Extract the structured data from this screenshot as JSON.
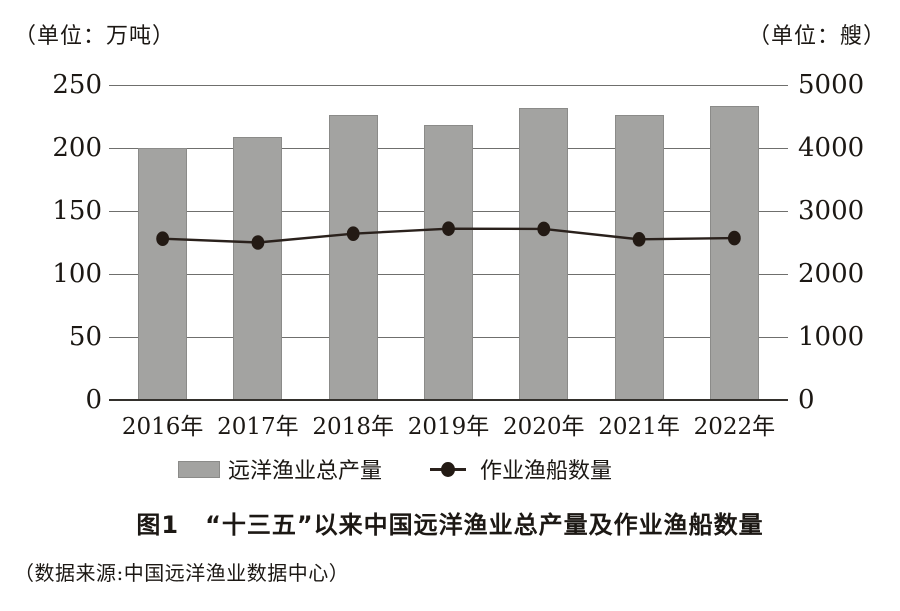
{
  "chart_data": {
    "type": "bar",
    "categories": [
      "2016年",
      "2017年",
      "2018年",
      "2019年",
      "2020年",
      "2021年",
      "2022年"
    ],
    "series": [
      {
        "name": "远洋渔业总产量",
        "kind": "bar",
        "axis": "left",
        "values": [
          200,
          209,
          226,
          218,
          232,
          226,
          233
        ]
      },
      {
        "name": "作业渔船数量",
        "kind": "line",
        "axis": "right",
        "values": [
          2560,
          2500,
          2640,
          2720,
          2715,
          2550,
          2570
        ]
      }
    ],
    "left_axis": {
      "unit_label": "（单位：万吨）",
      "ticks": [
        0,
        50,
        100,
        150,
        200,
        250
      ],
      "range": [
        0,
        250
      ]
    },
    "right_axis": {
      "unit_label": "（单位：艘）",
      "ticks": [
        0,
        1000,
        2000,
        3000,
        4000,
        5000
      ],
      "range": [
        0,
        5000
      ]
    },
    "grid": true,
    "legend_position": "bottom"
  },
  "caption": {
    "label": "图1",
    "text": "“十三五”以来中国远洋渔业总产量及作业渔船数量"
  },
  "source": "（数据来源:中国远洋渔业数据中心）",
  "colors": {
    "bar_fill": "#a3a3a1",
    "bar_border": "#8b8b89",
    "line": "#2a211c",
    "dot": "#231a14",
    "grid": "#6f6f6d",
    "axis": "#33302c",
    "text": "#1c1814"
  }
}
